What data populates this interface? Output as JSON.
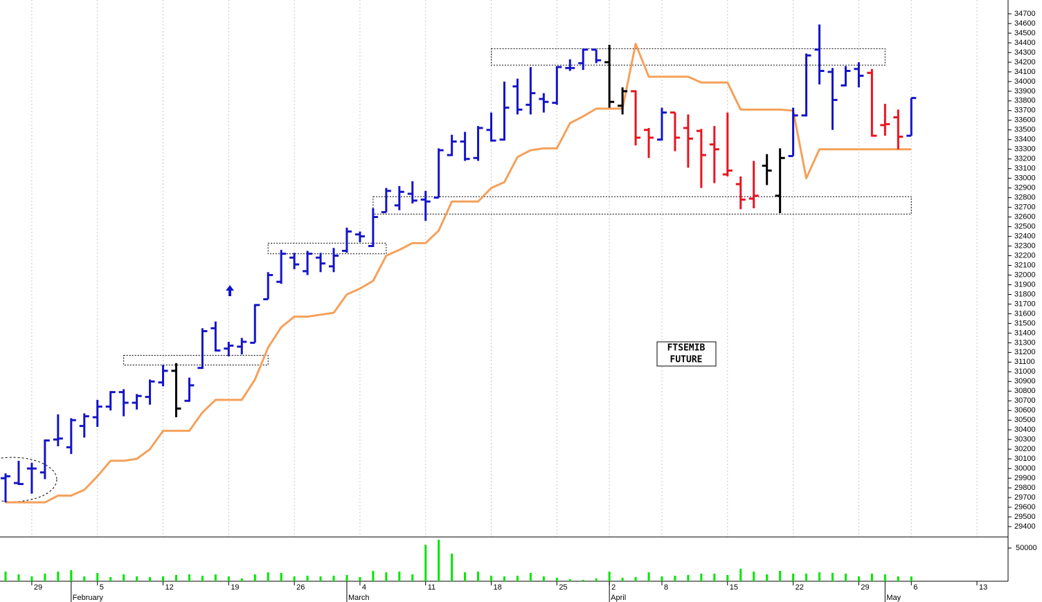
{
  "chart_data": {
    "type": "ohlc",
    "categories": [
      null,
      null,
      "29",
      null,
      null,
      null,
      null,
      "5",
      null,
      null,
      null,
      null,
      "12",
      null,
      null,
      null,
      null,
      "19",
      null,
      null,
      null,
      null,
      "26",
      null,
      null,
      null,
      null,
      "4",
      null,
      null,
      null,
      null,
      "11",
      null,
      null,
      null,
      null,
      "18",
      null,
      null,
      null,
      null,
      "25",
      null,
      null,
      null,
      "2",
      null,
      null,
      null,
      "8",
      null,
      null,
      null,
      null,
      "15",
      null,
      null,
      null,
      null,
      "22",
      null,
      null,
      null,
      null,
      "29",
      null,
      null,
      null,
      "6",
      null,
      null,
      null,
      null,
      "13",
      null
    ],
    "months": [
      null,
      null,
      null,
      null,
      null,
      "February",
      null,
      null,
      null,
      null,
      null,
      null,
      null,
      null,
      null,
      null,
      null,
      null,
      null,
      null,
      null,
      null,
      null,
      null,
      null,
      null,
      "March",
      null,
      null,
      null,
      null,
      null,
      null,
      null,
      null,
      null,
      null,
      null,
      null,
      null,
      null,
      null,
      null,
      null,
      null,
      null,
      "April",
      null,
      null,
      null,
      null,
      null,
      null,
      null,
      null,
      null,
      null,
      null,
      null,
      null,
      null,
      null,
      null,
      null,
      null,
      null,
      null,
      "May",
      null,
      null,
      null,
      null,
      null,
      null,
      null,
      null
    ],
    "open": [
      29900,
      29850,
      30000,
      29960,
      30300,
      30220,
      30440,
      30530,
      30640,
      30790,
      30680,
      30740,
      30890,
      31010,
      30700,
      31040,
      31450,
      31240,
      31260,
      31300,
      31750,
      31930,
      32180,
      32040,
      32180,
      32090,
      32250,
      32420,
      32300,
      32650,
      32720,
      32840,
      32780,
      32800,
      33240,
      33380,
      33210,
      33500,
      33400,
      33950,
      33760,
      33820,
      33780,
      34140,
      34190,
      34330,
      34200,
      33750,
      33900,
      33500,
      33400,
      33680,
      33520,
      33490,
      33350,
      33040,
      32940,
      32790,
      33130,
      32820,
      33230,
      33650,
      34330,
      34100,
      33960,
      34130,
      34090,
      33550,
      33630,
      33440,
      null,
      null,
      null,
      null,
      null,
      null
    ],
    "high": [
      29950,
      30080,
      30060,
      30300,
      30560,
      30520,
      30570,
      30710,
      30800,
      30820,
      30770,
      30920,
      31070,
      31090,
      30940,
      31450,
      31520,
      31310,
      31350,
      31700,
      32030,
      32260,
      32230,
      32250,
      32230,
      32280,
      32490,
      32450,
      32690,
      32900,
      32920,
      32970,
      32870,
      33310,
      33450,
      33480,
      33540,
      33680,
      34000,
      34030,
      34150,
      33880,
      34160,
      34230,
      34340,
      34330,
      34380,
      33940,
      33910,
      33520,
      33730,
      33680,
      33660,
      33510,
      33540,
      33680,
      33020,
      33180,
      33250,
      33310,
      33730,
      34290,
      34590,
      34140,
      34160,
      34200,
      34130,
      33770,
      33710,
      33830,
      null,
      null,
      null,
      null,
      null,
      null
    ],
    "low": [
      29650,
      29830,
      29740,
      29890,
      30230,
      30150,
      30320,
      30430,
      30600,
      30540,
      30610,
      30660,
      30850,
      30530,
      30690,
      31030,
      31210,
      31160,
      31180,
      31300,
      31750,
      31910,
      32060,
      32000,
      32030,
      32030,
      32230,
      32340,
      32290,
      32650,
      32670,
      32740,
      32560,
      32800,
      33230,
      33180,
      33180,
      33380,
      33390,
      33660,
      33660,
      33680,
      33760,
      34110,
      34120,
      34190,
      33730,
      33660,
      33340,
      33210,
      33390,
      33280,
      33110,
      32900,
      32950,
      33020,
      32680,
      32690,
      32930,
      32640,
      33230,
      33640,
      33970,
      33500,
      33950,
      33940,
      33430,
      33440,
      33300,
      33440,
      null,
      null,
      null,
      null,
      null,
      null
    ],
    "close": [
      29920,
      29840,
      30000,
      30290,
      30310,
      30500,
      30540,
      30640,
      30790,
      30680,
      30750,
      30900,
      31010,
      30620,
      30860,
      31420,
      31220,
      31270,
      31310,
      31690,
      32000,
      32220,
      32110,
      32220,
      32120,
      32200,
      32450,
      32400,
      32600,
      32870,
      32860,
      32770,
      32760,
      33290,
      33380,
      33200,
      33520,
      33390,
      33730,
      33710,
      33880,
      33790,
      34150,
      34140,
      34330,
      34220,
      33790,
      33900,
      33420,
      33420,
      33680,
      33420,
      33410,
      33240,
      33300,
      33080,
      32780,
      32820,
      33080,
      33210,
      33650,
      34270,
      34110,
      33810,
      34110,
      34060,
      33440,
      33560,
      33430,
      33830,
      null,
      null,
      null,
      null,
      null,
      null
    ],
    "bar_colors": [
      "#1414c8",
      "#1414c8",
      "#1414c8",
      "#1414c8",
      "#1414c8",
      "#1414c8",
      "#1414c8",
      "#1414c8",
      "#1414c8",
      "#1414c8",
      "#1414c8",
      "#1414c8",
      "#1414c8",
      "#000000",
      "#1414c8",
      "#1414c8",
      "#1414c8",
      "#1414c8",
      "#1414c8",
      "#1414c8",
      "#1414c8",
      "#1414c8",
      "#1414c8",
      "#1414c8",
      "#1414c8",
      "#1414c8",
      "#1414c8",
      "#1414c8",
      "#1414c8",
      "#1414c8",
      "#1414c8",
      "#1414c8",
      "#1414c8",
      "#1414c8",
      "#1414c8",
      "#1414c8",
      "#1414c8",
      "#1414c8",
      "#1414c8",
      "#1414c8",
      "#1414c8",
      "#1414c8",
      "#1414c8",
      "#1414c8",
      "#1414c8",
      "#1414c8",
      "#000000",
      "#000000",
      "#e8141e",
      "#e8141e",
      "#1414c8",
      "#e8141e",
      "#e8141e",
      "#e8141e",
      "#e8141e",
      "#e8141e",
      "#e8141e",
      "#e8141e",
      "#000000",
      "#000000",
      "#1414c8",
      "#1414c8",
      "#1414c8",
      "#1414c8",
      "#1414c8",
      "#1414c8",
      "#e8141e",
      "#e8141e",
      "#e8141e",
      "#1414c8",
      null,
      null,
      null,
      null,
      null,
      null
    ],
    "stop_line": {
      "color": "#f5a05a",
      "values": [
        29650,
        29650,
        29650,
        29650,
        29720,
        29720,
        29780,
        29920,
        30080,
        30080,
        30100,
        30200,
        30390,
        30390,
        30390,
        30580,
        30710,
        30710,
        30710,
        30920,
        31250,
        31460,
        31570,
        31570,
        31590,
        31610,
        31800,
        31860,
        31940,
        32200,
        32260,
        32330,
        32330,
        32460,
        32760,
        32760,
        32760,
        32900,
        32960,
        33220,
        33290,
        33310,
        33310,
        33570,
        33640,
        33720,
        33720,
        33720,
        34390,
        34050,
        34050,
        34050,
        34050,
        33990,
        33990,
        33990,
        33710,
        33710,
        33710,
        33710,
        33700,
        33000,
        33300,
        33300,
        33300,
        33300,
        33300,
        33300,
        33300,
        33300,
        null,
        null,
        null,
        null,
        null,
        null
      ]
    },
    "volume": {
      "color": "#00e600",
      "ylim": [
        0,
        66700
      ],
      "yticks": [
        50000
      ],
      "values": [
        14600,
        10400,
        7300,
        11500,
        14600,
        16700,
        7300,
        12500,
        6300,
        10400,
        7300,
        6300,
        7300,
        9400,
        10400,
        8300,
        10400,
        7300,
        4200,
        10400,
        13500,
        12500,
        7300,
        8300,
        7300,
        8300,
        9400,
        6300,
        15600,
        13500,
        14600,
        10400,
        55000,
        62500,
        41700,
        13500,
        14600,
        8300,
        7300,
        8300,
        12500,
        7300,
        5200,
        3100,
        2100,
        4200,
        14600,
        5200,
        6300,
        13500,
        7300,
        8300,
        9400,
        11500,
        11500,
        9400,
        18800,
        14600,
        10400,
        15600,
        11500,
        11500,
        13500,
        12500,
        11500,
        7300,
        11500,
        10400,
        7300,
        7300,
        null,
        null,
        null,
        null,
        null,
        null
      ]
    },
    "zones": [
      {
        "x": [
          9,
          20
        ],
        "y": [
          31070,
          31170
        ]
      },
      {
        "x": [
          20,
          29
        ],
        "y": [
          32220,
          32330
        ]
      },
      {
        "x": [
          28,
          69
        ],
        "y": [
          32630,
          32810
        ]
      },
      {
        "x": [
          37,
          67
        ],
        "y": [
          34170,
          34340
        ]
      }
    ],
    "annotation": [
      "FTSEMIB",
      "FUTURE"
    ],
    "ylim": [
      29400,
      34700
    ],
    "yticks": [
      29400,
      29500,
      29600,
      29700,
      29800,
      29900,
      30000,
      30100,
      30200,
      30300,
      30400,
      30500,
      30600,
      30700,
      30800,
      30900,
      31000,
      31100,
      31200,
      31300,
      31400,
      31500,
      31600,
      31700,
      31800,
      31900,
      32000,
      32100,
      32200,
      32300,
      32400,
      32500,
      32600,
      32700,
      32800,
      32900,
      33000,
      33100,
      33200,
      33300,
      33400,
      33500,
      33600,
      33700,
      33800,
      33900,
      34000,
      34100,
      34200,
      34300,
      34400,
      34500,
      34600,
      34700
    ],
    "grid": true
  }
}
